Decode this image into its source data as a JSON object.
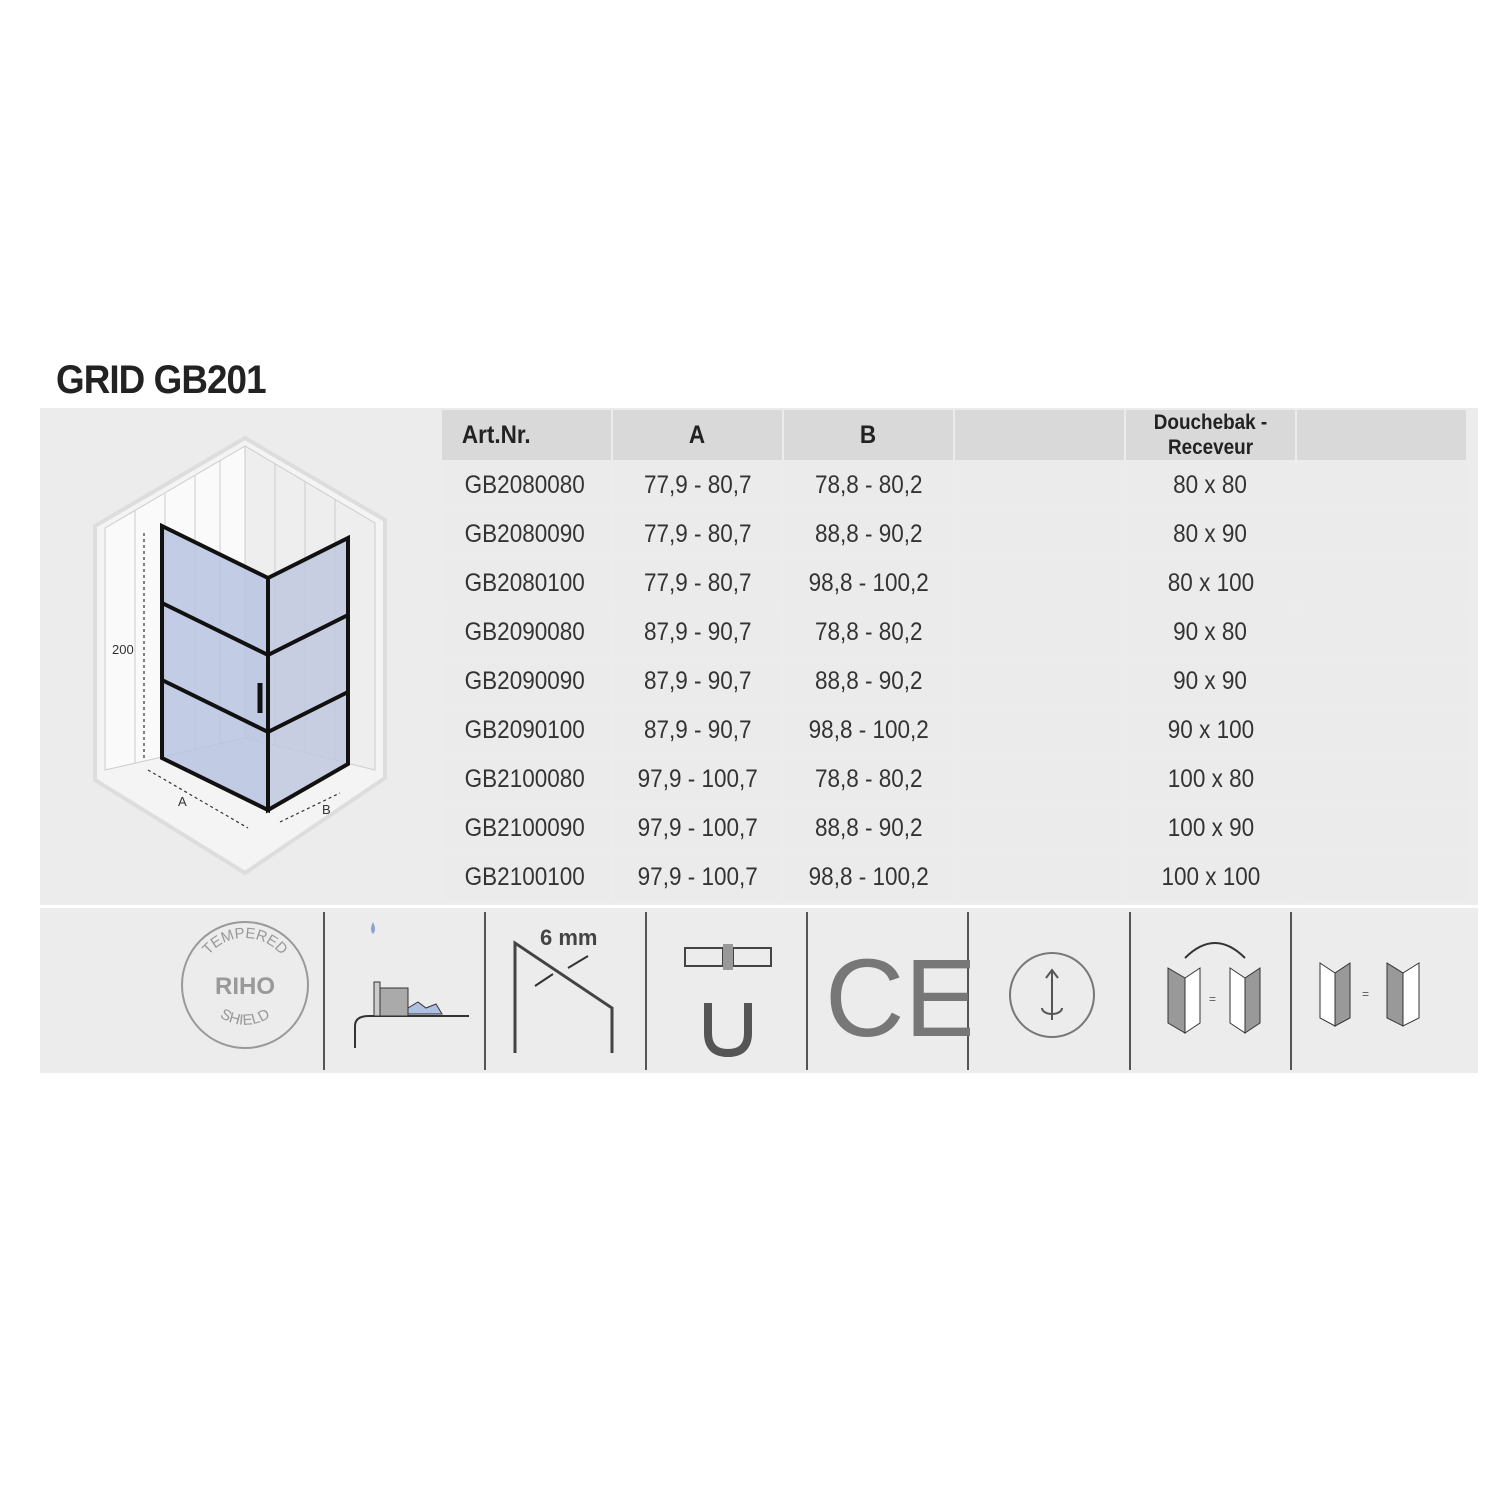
{
  "title": "GRID GB201",
  "diagram": {
    "height_label": "200",
    "a_label": "A",
    "b_label": "B"
  },
  "table": {
    "headers": [
      "Art.Nr.",
      "A",
      "B",
      "",
      "Douchebak - Receveur",
      ""
    ],
    "rows": [
      [
        "GB2080080",
        "77,9 - 80,7",
        "78,8 - 80,2",
        "",
        "80 x 80",
        ""
      ],
      [
        "GB2080090",
        "77,9 - 80,7",
        "88,8 - 90,2",
        "",
        "80 x 90",
        ""
      ],
      [
        "GB2080100",
        "77,9 - 80,7",
        "98,8 - 100,2",
        "",
        "80 x 100",
        ""
      ],
      [
        "GB2090080",
        "87,9 - 90,7",
        "78,8 - 80,2",
        "",
        "90 x 80",
        ""
      ],
      [
        "GB2090090",
        "87,9 - 90,7",
        "88,8 - 90,2",
        "",
        "90 x 90",
        ""
      ],
      [
        "GB2090100",
        "87,9 - 90,7",
        "98,8 - 100,2",
        "",
        "90 x 100",
        ""
      ],
      [
        "GB2100080",
        "97,9 - 100,7",
        "78,8 - 80,2",
        "",
        "100 x 80",
        ""
      ],
      [
        "GB2100090",
        "97,9 - 100,7",
        "88,8 - 90,2",
        "",
        "100 x 90",
        ""
      ],
      [
        "GB2100100",
        "97,9 - 100,7",
        "98,8 - 100,2",
        "",
        "100 x 100",
        ""
      ]
    ]
  },
  "icons": {
    "seal": {
      "top": "TEMPERED",
      "center": "RIHO",
      "bottom": "SHIELD"
    },
    "glass_thickness": "6 mm",
    "ce_mark": "CE",
    "names": [
      "tempered-riho-shield-icon",
      "easy-clean-icon",
      "glass-thickness-icon",
      "magnetic-seal-icon",
      "ce-mark-icon",
      "lift-hinge-icon",
      "reversible-door-icon",
      "left-right-mount-icon"
    ]
  }
}
